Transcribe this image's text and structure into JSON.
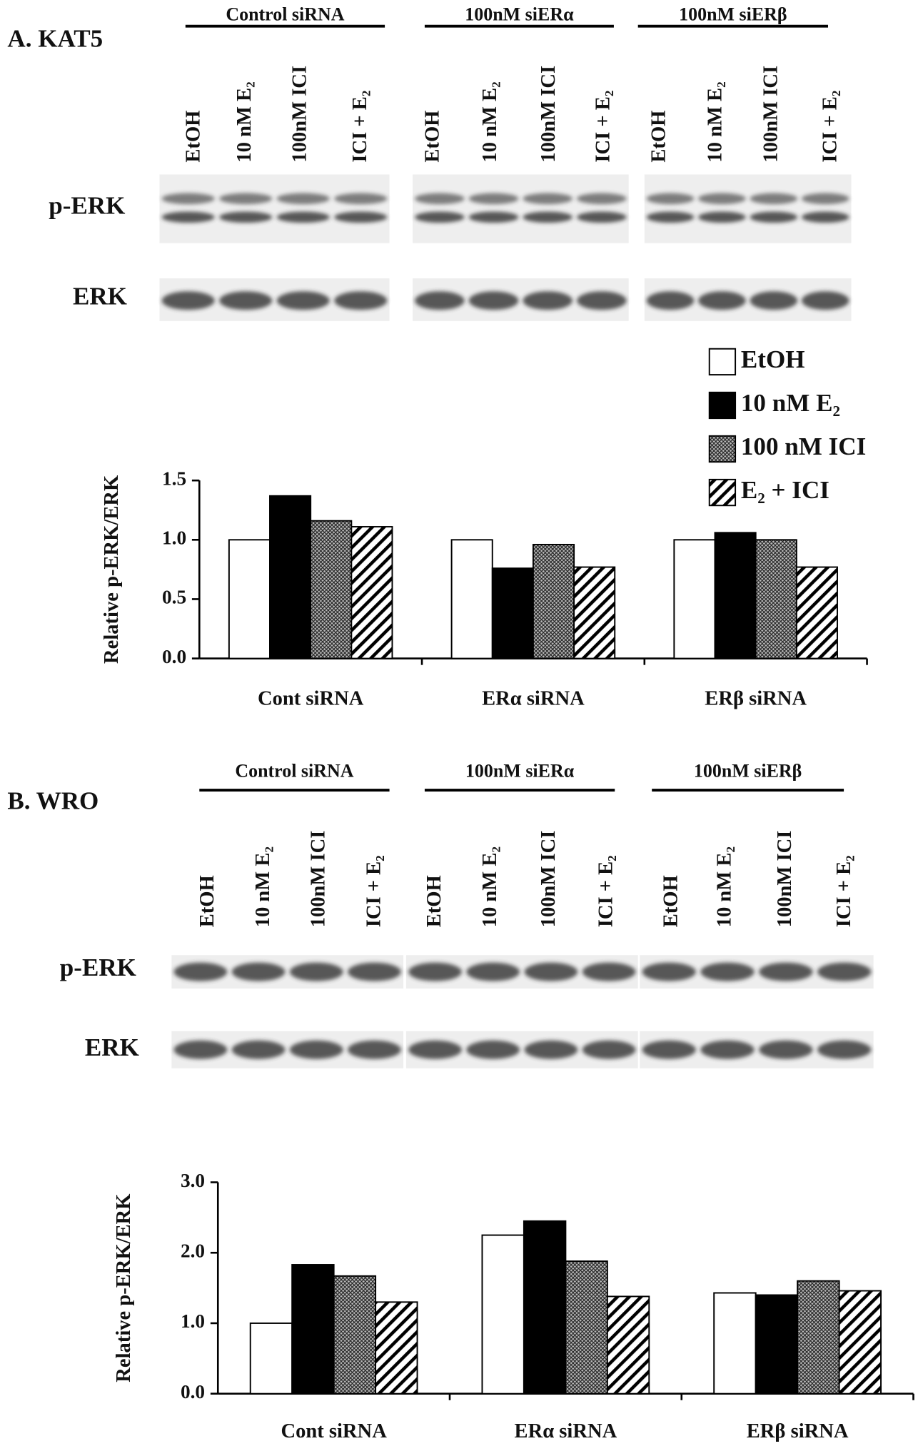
{
  "panel_a": {
    "label": "A. KAT5",
    "groups": [
      "Control siRNA",
      "100nM siERα",
      "100nM siERβ"
    ],
    "lanes": [
      "EtOH",
      "10 nM E₂",
      "100nM ICI",
      "ICI + E₂"
    ],
    "blots": [
      "p-ERK",
      "ERK"
    ]
  },
  "panel_b": {
    "label": "B. WRO",
    "groups": [
      "Control siRNA",
      "100nM siERα",
      "100nM siERβ"
    ],
    "lanes": [
      "EtOH",
      "10 nM E₂",
      "100nM ICI",
      "ICI + E₂"
    ],
    "blots": [
      "p-ERK",
      "ERK"
    ]
  },
  "chart_data": [
    {
      "type": "bar",
      "y_label": "Relative p-ERK/ERK",
      "categories": [
        "Cont siRNA",
        "ERα siRNA",
        "ERβ siRNA"
      ],
      "series": [
        {
          "name": "EtOH",
          "color": "#ffffff",
          "hatch": "none",
          "values": [
            1.0,
            1.0,
            1.0
          ]
        },
        {
          "name": "10 nM E₂",
          "color": "#000000",
          "hatch": "none",
          "values": [
            1.37,
            0.76,
            1.06
          ]
        },
        {
          "name": "100 nM ICI",
          "color": "#888888",
          "hatch": "dense",
          "values": [
            1.16,
            0.96,
            1.0
          ]
        },
        {
          "name": "E₂ + ICI",
          "color": "#ffffff",
          "hatch": "stripes",
          "values": [
            1.11,
            0.77,
            0.77
          ]
        }
      ],
      "ylim": [
        0,
        1.5
      ],
      "yticks": [
        {
          "value": 0,
          "label": "0.0"
        },
        0.5,
        {
          "value": 1,
          "label": "1.0"
        },
        1.5
      ],
      "legend": "upper right"
    },
    {
      "type": "bar",
      "y_label": "Relative p-ERK/ERK",
      "categories": [
        "Cont siRNA",
        "ERα siRNA",
        "ERβ siRNA"
      ],
      "series": [
        {
          "color": "#ffffff",
          "hatch": "none",
          "values": [
            1.0,
            2.25,
            1.43
          ]
        },
        {
          "color": "#000000",
          "hatch": "none",
          "values": [
            1.83,
            2.45,
            1.4
          ]
        },
        {
          "color": "#888888",
          "hatch": "dense",
          "values": [
            1.67,
            1.88,
            1.6
          ]
        },
        {
          "color": "#ffffff",
          "hatch": "stripes",
          "values": [
            1.3,
            1.38,
            1.46
          ]
        }
      ],
      "ylim": [
        0,
        3
      ],
      "yticks": [
        {
          "value": 0,
          "label": "0.0"
        },
        {
          "value": 1,
          "label": "1.0"
        },
        {
          "value": 2,
          "label": "2.0"
        },
        {
          "value": 3,
          "label": "3.0"
        }
      ]
    }
  ]
}
